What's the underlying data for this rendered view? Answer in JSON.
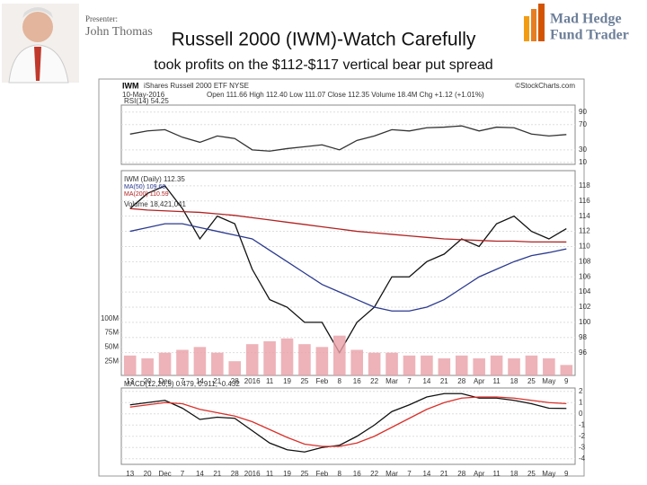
{
  "presenter": {
    "label": "Presenter:",
    "name": "John Thomas"
  },
  "logo": {
    "line1": "Mad Hedge",
    "line2": "Fund Trader"
  },
  "title": "Russell 2000 (IWM)-Watch Carefully",
  "subtitle": "took profits on the $112-$117 vertical bear put spread",
  "header": {
    "symbol": "IWM",
    "name": "iShares Russell 2000 ETF NYSE",
    "source": "©StockCharts.com",
    "date": "10-May-2016",
    "quote": "Open 111.66 High 112.40 Low 111.07 Close 112.35 Volume 18.4M Chg +1.12 (+1.01%)"
  },
  "chart_data": [
    {
      "type": "line",
      "title": "RSI(14) 54.25",
      "ylim": [
        7,
        101
      ],
      "yticks": [
        10,
        30,
        70,
        90
      ],
      "grid": true,
      "series": [
        {
          "name": "RSI(14)",
          "color": "#333333",
          "values": [
            55,
            60,
            62,
            50,
            42,
            52,
            48,
            30,
            28,
            32,
            35,
            38,
            30,
            45,
            52,
            62,
            60,
            65,
            66,
            68,
            60,
            66,
            65,
            55,
            52,
            54.25
          ]
        }
      ]
    },
    {
      "type": "line",
      "title": "IWM (Daily) 112.35",
      "ylim": [
        93,
        120
      ],
      "yticks": [
        96,
        98,
        100,
        102,
        104,
        106,
        108,
        110,
        112,
        114,
        116,
        118
      ],
      "grid": true,
      "categories": [
        "13",
        "20",
        "Dec",
        "7",
        "14",
        "21",
        "28",
        "2016",
        "11",
        "19",
        "25",
        "Feb",
        "8",
        "16",
        "22",
        "Mar",
        "7",
        "14",
        "21",
        "28",
        "Apr",
        "11",
        "18",
        "25",
        "May",
        "9"
      ],
      "series": [
        {
          "name": "IWM (Daily) 112.35",
          "color": "#111111",
          "values": [
            115,
            117,
            118,
            115,
            111,
            114,
            113,
            107,
            103,
            102,
            100,
            100,
            96,
            100,
            102,
            106,
            106,
            108,
            109,
            111,
            110,
            113,
            114,
            112,
            111,
            112.35
          ]
        },
        {
          "name": "MA(50) 109.68",
          "color": "#2b3a8f",
          "values": [
            112,
            112.5,
            113,
            113,
            112.5,
            112,
            111.5,
            111,
            109.5,
            108,
            106.5,
            105,
            104,
            103,
            102,
            101.5,
            101.5,
            102,
            103,
            104.5,
            106,
            107,
            108,
            108.8,
            109.2,
            109.68
          ]
        },
        {
          "name": "MA(200) 110.59",
          "color": "#b22222",
          "values": [
            115,
            114.8,
            114.7,
            114.6,
            114.5,
            114.3,
            114.1,
            113.8,
            113.5,
            113.2,
            112.9,
            112.6,
            112.3,
            112,
            111.8,
            111.6,
            111.4,
            111.2,
            111,
            110.9,
            110.8,
            110.7,
            110.7,
            110.6,
            110.6,
            110.59
          ]
        }
      ]
    },
    {
      "type": "bar",
      "title": "Volume 18,421,041",
      "ylim": [
        0,
        360
      ],
      "yticks": [
        {
          "value": 25,
          "label": "25M"
        },
        {
          "value": 50,
          "label": "50M"
        },
        {
          "value": 75,
          "label": "75M"
        },
        {
          "value": 100,
          "label": "100M"
        }
      ],
      "series": [
        {
          "name": "Volume",
          "color": "#e8a0a8",
          "values": [
            35,
            30,
            40,
            45,
            50,
            40,
            25,
            55,
            60,
            65,
            55,
            50,
            70,
            45,
            40,
            40,
            35,
            35,
            30,
            35,
            30,
            35,
            30,
            35,
            30,
            18.4
          ]
        }
      ]
    },
    {
      "type": "line",
      "title": "MACD(12,26,9) 0.479, 0.911, -0.432",
      "ylim": [
        -4.5,
        2.3
      ],
      "yticks": [
        -4,
        -3,
        -2,
        -1,
        0,
        1,
        2
      ],
      "grid": true,
      "series": [
        {
          "name": "MACD",
          "color": "#111111",
          "values": [
            0.8,
            1.0,
            1.2,
            0.5,
            -0.5,
            -0.3,
            -0.4,
            -1.5,
            -2.6,
            -3.2,
            -3.4,
            -3.0,
            -2.8,
            -2.0,
            -1.0,
            0.2,
            0.8,
            1.5,
            1.8,
            1.8,
            1.4,
            1.4,
            1.2,
            0.9,
            0.5,
            0.479
          ]
        },
        {
          "name": "Signal",
          "color": "#d9302a",
          "values": [
            0.6,
            0.8,
            1.0,
            0.9,
            0.4,
            0.1,
            -0.2,
            -0.7,
            -1.4,
            -2.1,
            -2.7,
            -2.9,
            -2.9,
            -2.6,
            -2.0,
            -1.2,
            -0.4,
            0.4,
            1.0,
            1.4,
            1.5,
            1.5,
            1.4,
            1.2,
            1.0,
            0.911
          ]
        }
      ]
    }
  ]
}
